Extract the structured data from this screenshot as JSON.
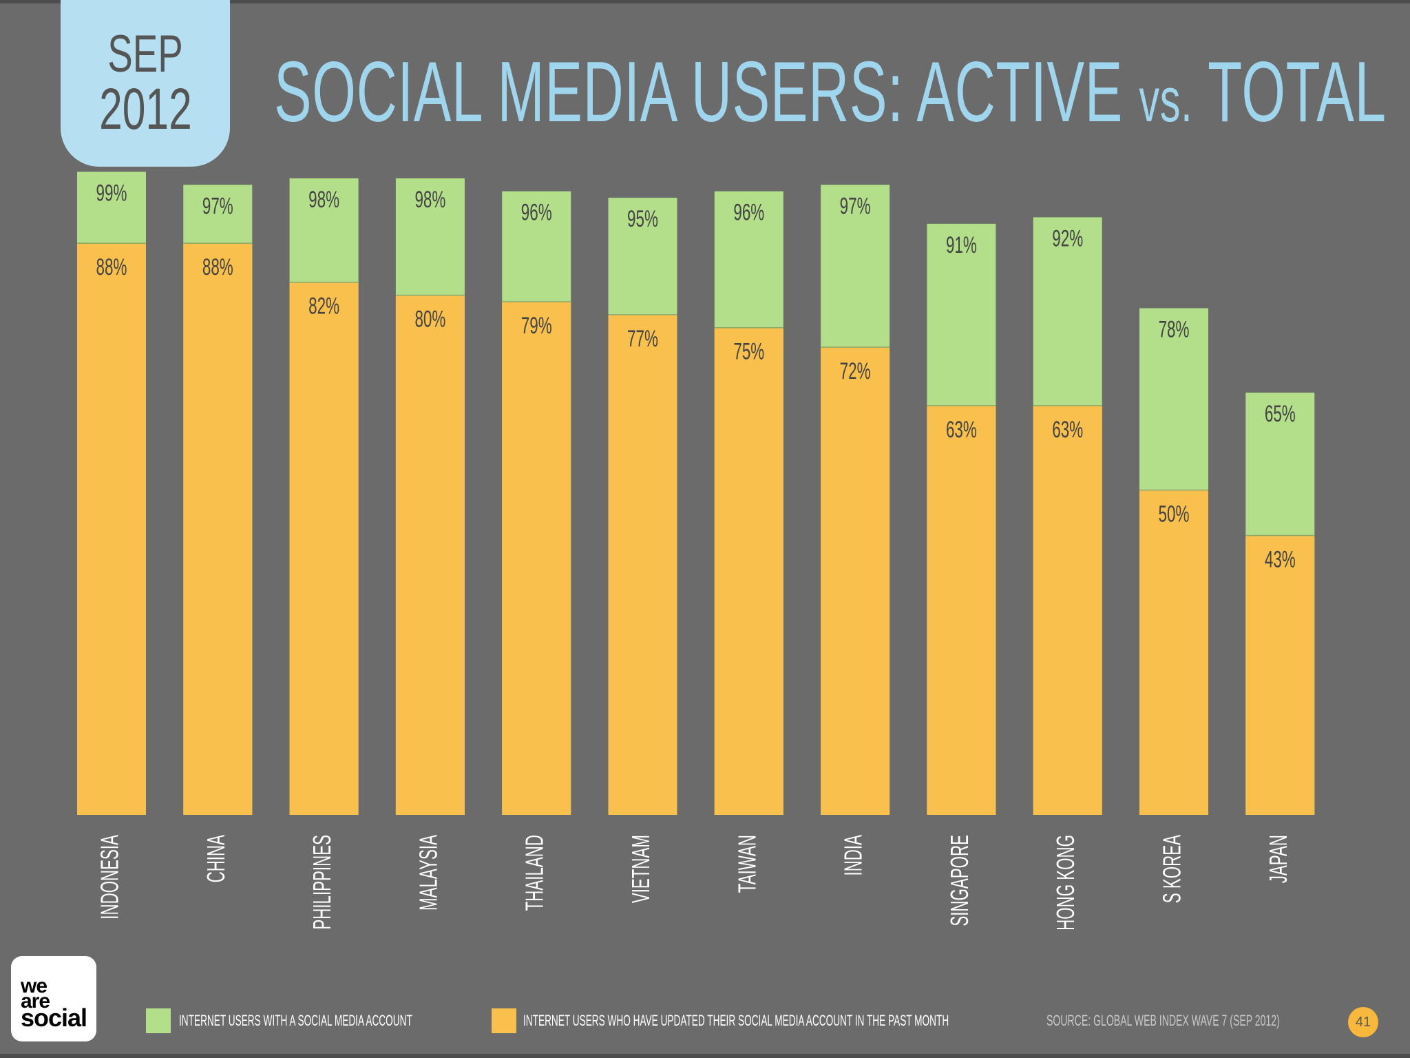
{
  "header": {
    "month": "SEP",
    "year": "2012",
    "title_main": "SOCIAL MEDIA USERS: ACTIVE ",
    "title_vs": "vs.",
    "title_end": " TOTAL"
  },
  "chart_data": {
    "type": "bar",
    "title": "SOCIAL MEDIA USERS: ACTIVE vs. TOTAL",
    "categories": [
      "INDONESIA",
      "CHINA",
      "PHILIPPINES",
      "MALAYSIA",
      "THAILAND",
      "VIETNAM",
      "TAIWAN",
      "INDIA",
      "SINGAPORE",
      "HONG KONG",
      "S KOREA",
      "JAPAN"
    ],
    "series": [
      {
        "name": "INTERNET USERS WITH A SOCIAL MEDIA ACCOUNT",
        "color": "#b4df8a",
        "values": [
          99,
          97,
          98,
          98,
          96,
          95,
          96,
          97,
          91,
          92,
          78,
          65
        ]
      },
      {
        "name": "INTERNET USERS WHO HAVE UPDATED THEIR SOCIAL MEDIA ACCOUNT IN THE PAST MONTH",
        "color": "#f9c04e",
        "values": [
          88,
          88,
          82,
          80,
          79,
          77,
          75,
          72,
          63,
          63,
          50,
          43
        ]
      }
    ],
    "value_suffix": "%",
    "ylim": [
      0,
      100
    ],
    "grid": false,
    "legend": "bottom",
    "overlap": true
  },
  "footer": {
    "logo_line1": "we",
    "logo_line2": "are",
    "logo_line3": "social",
    "legend_total": "INTERNET USERS WITH A SOCIAL MEDIA ACCOUNT",
    "legend_active": "INTERNET USERS WHO HAVE UPDATED THEIR SOCIAL MEDIA ACCOUNT IN THE PAST MONTH",
    "source": "SOURCE: GLOBAL WEB INDEX WAVE 7 (SEP 2012)",
    "page_number": "41"
  }
}
